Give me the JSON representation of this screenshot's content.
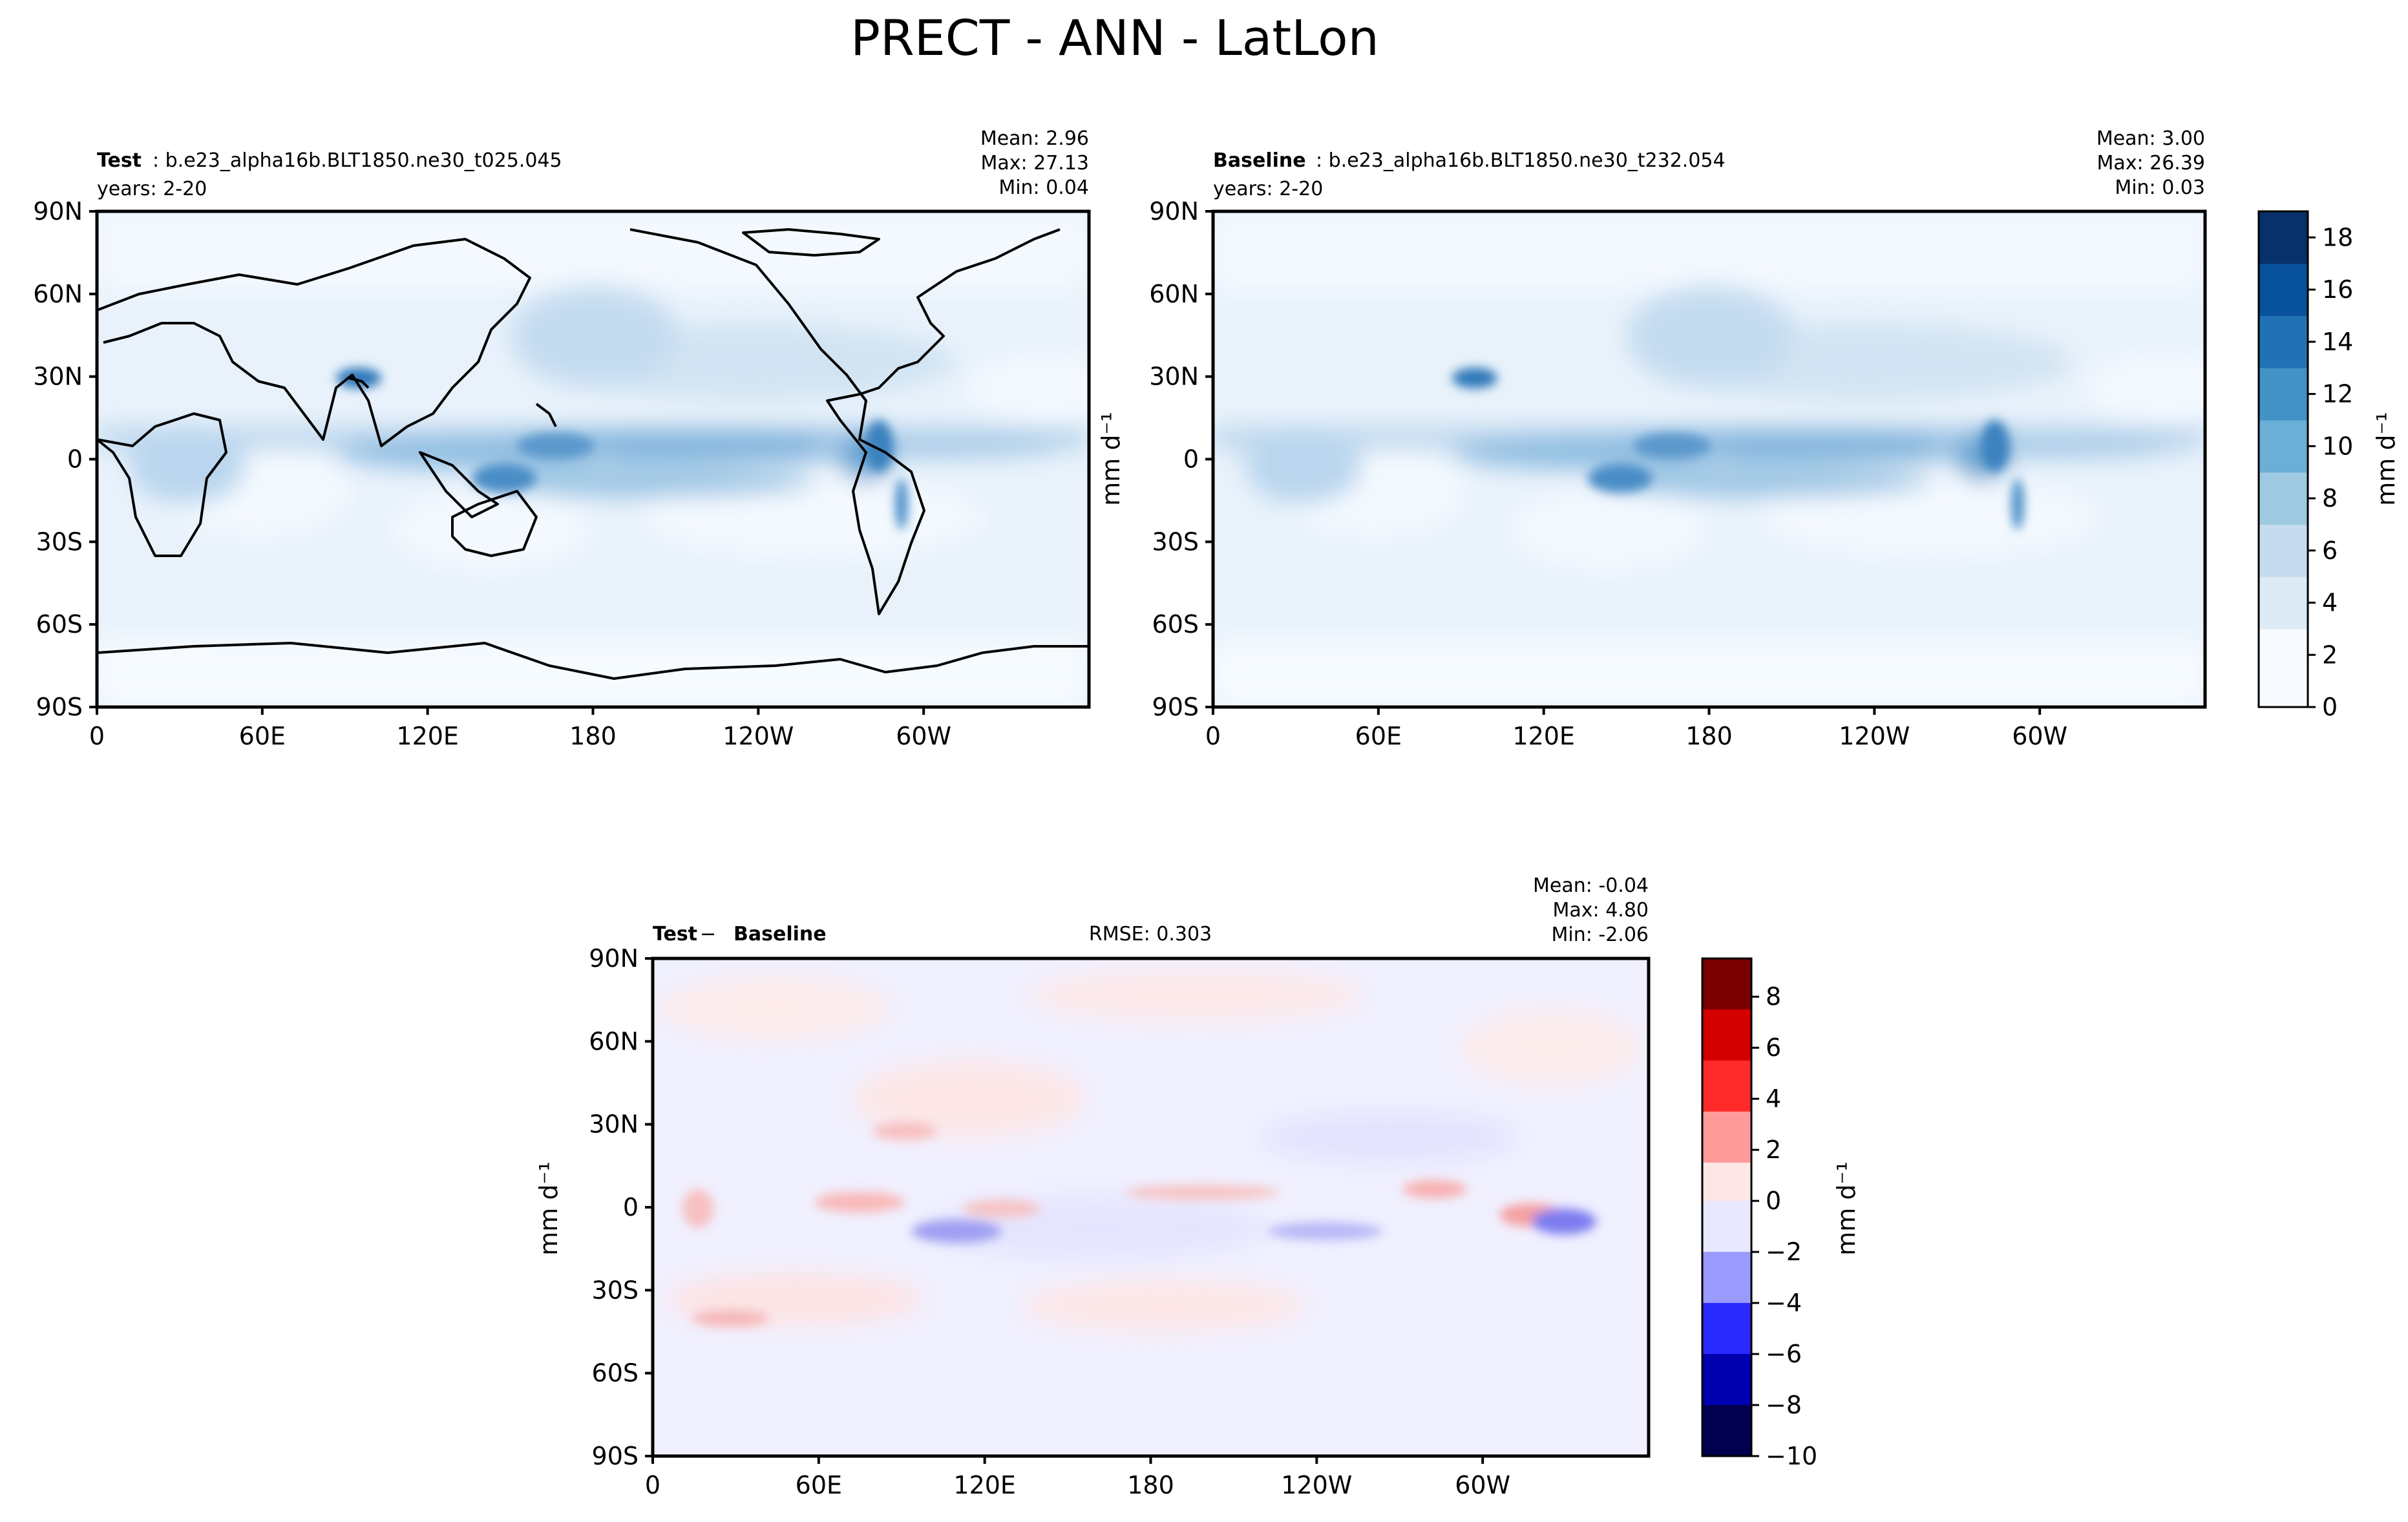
{
  "figure": {
    "title": "PRECT - ANN - LatLon"
  },
  "lat_ticks": [
    "90N",
    "60N",
    "30N",
    "0",
    "30S",
    "60S",
    "90S"
  ],
  "lon_ticks": [
    "0",
    "60E",
    "120E",
    "180",
    "120W",
    "60W"
  ],
  "panels": {
    "test": {
      "label": "Test",
      "case": ": b.e23_alpha16b.BLT1850.ne30_t025.045",
      "years": "years: 2-20",
      "mean": "Mean:  2.96",
      "max": "Max: 27.13",
      "min": "Min:  0.04"
    },
    "baseline": {
      "label": "Baseline",
      "case": ": b.e23_alpha16b.BLT1850.ne30_t232.054",
      "years": "years: 2-20",
      "mean": "Mean:  3.00",
      "max": "Max: 26.39",
      "min": "Min:  0.03"
    },
    "diff": {
      "label_a": "Test",
      "label_sep": " − ",
      "label_b": "Baseline",
      "rmse": "RMSE: 0.303",
      "mean": "Mean: -0.04",
      "max": "Max:  4.80",
      "min": "Min: -2.06"
    }
  },
  "colorbars": {
    "precip": {
      "label": "mm d⁻¹",
      "ticks": [
        "0",
        "2",
        "4",
        "6",
        "8",
        "10",
        "12",
        "14",
        "16",
        "18"
      ],
      "colors": [
        "#f7fbff",
        "#deebf7",
        "#c6dbef",
        "#9ecae1",
        "#6baed6",
        "#4292c6",
        "#2171b5",
        "#08519c",
        "#08306b"
      ]
    },
    "diff": {
      "label": "mm d⁻¹",
      "ticks": [
        "8",
        "6",
        "4",
        "2",
        "0",
        "−2",
        "−4",
        "−6",
        "−8",
        "−10"
      ],
      "colors": [
        "#7a0000",
        "#d40000",
        "#ff2a2a",
        "#ff9a9a",
        "#fde6e6",
        "#e8e8ff",
        "#9a9aff",
        "#2a2aff",
        "#0000b0",
        "#00004e"
      ]
    }
  },
  "side_labels": {
    "mid": "mm d⁻¹",
    "diff_left": "mm d⁻¹"
  },
  "chart_data": [
    {
      "type": "heatmap",
      "title": "Test",
      "variable": "PRECT",
      "units": "mm d⁻¹",
      "stats": {
        "mean": 2.96,
        "max": 27.13,
        "min": 0.04
      },
      "xlabel": "",
      "ylabel": "",
      "xticks": [
        "0",
        "60E",
        "120E",
        "180",
        "120W",
        "60W"
      ],
      "yticks": [
        "90N",
        "60N",
        "30N",
        "0",
        "30S",
        "60S",
        "90S"
      ],
      "zlim": [
        0,
        19
      ]
    },
    {
      "type": "heatmap",
      "title": "Baseline",
      "variable": "PRECT",
      "units": "mm d⁻¹",
      "stats": {
        "mean": 3.0,
        "max": 26.39,
        "min": 0.03
      },
      "xticks": [
        "0",
        "60E",
        "120E",
        "180",
        "120W",
        "60W"
      ],
      "yticks": [
        "90N",
        "60N",
        "30N",
        "0",
        "30S",
        "60S",
        "90S"
      ],
      "zlim": [
        0,
        19
      ]
    },
    {
      "type": "heatmap",
      "title": "Test − Baseline",
      "variable": "PRECT",
      "units": "mm d⁻¹",
      "stats": {
        "mean": -0.04,
        "max": 4.8,
        "min": -2.06,
        "rmse": 0.303
      },
      "xticks": [
        "0",
        "60E",
        "120E",
        "180",
        "120W",
        "60W"
      ],
      "yticks": [
        "90N",
        "60N",
        "30N",
        "0",
        "30S",
        "60S",
        "90S"
      ],
      "zlim": [
        -10,
        9.5
      ]
    }
  ]
}
